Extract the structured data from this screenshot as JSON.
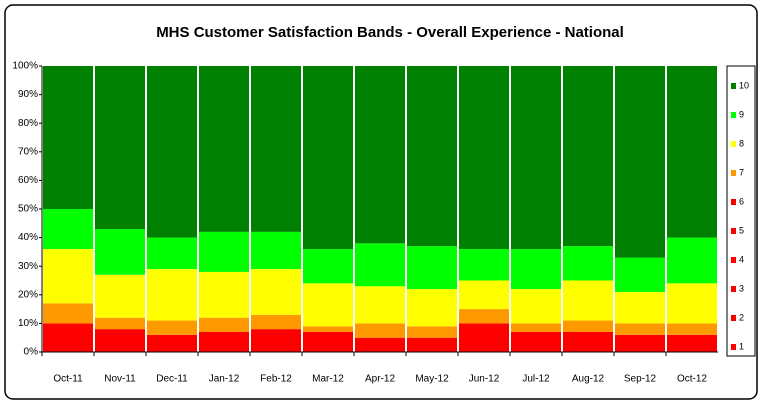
{
  "chart_data": {
    "type": "stacked_bar_100",
    "title": "MHS Customer Satisfaction Bands - Overall Experience - National",
    "categories": [
      "Oct-11",
      "Nov-11",
      "Dec-11",
      "Jan-12",
      "Feb-12",
      "Mar-12",
      "Apr-12",
      "May-12",
      "Jun-12",
      "Jul-12",
      "Aug-12",
      "Sep-12",
      "Oct-12"
    ],
    "series": [
      {
        "name": "10",
        "color": "#008000",
        "values": [
          50,
          57,
          60,
          58,
          58,
          64,
          62,
          63,
          64,
          64,
          63,
          67,
          60
        ]
      },
      {
        "name": "9",
        "color": "#00ff00",
        "values": [
          14,
          16,
          11,
          14,
          13,
          12,
          15,
          15,
          11,
          14,
          12,
          12,
          16
        ]
      },
      {
        "name": "8",
        "color": "#ffff00",
        "values": [
          19,
          15,
          18,
          16,
          16,
          15,
          13,
          13,
          10,
          12,
          14,
          11,
          14
        ]
      },
      {
        "name": "7",
        "color": "#ff9900",
        "values": [
          7,
          4,
          5,
          5,
          5,
          2,
          5,
          4,
          5,
          3,
          4,
          4,
          4
        ]
      },
      {
        "name": "6",
        "color": "#ff0000",
        "values": [
          10,
          8,
          6,
          7,
          8,
          7,
          5,
          5,
          10,
          7,
          7,
          6,
          6
        ]
      },
      {
        "name": "5",
        "color": "#ff0000",
        "values": [
          0,
          0,
          0,
          0,
          0,
          0,
          0,
          0,
          0,
          0,
          0,
          0,
          0
        ]
      },
      {
        "name": "4",
        "color": "#ff0000",
        "values": [
          0,
          0,
          0,
          0,
          0,
          0,
          0,
          0,
          0,
          0,
          0,
          0,
          0
        ]
      },
      {
        "name": "3",
        "color": "#ff0000",
        "values": [
          0,
          0,
          0,
          0,
          0,
          0,
          0,
          0,
          0,
          0,
          0,
          0,
          0
        ]
      },
      {
        "name": "2",
        "color": "#ff0000",
        "values": [
          0,
          0,
          0,
          0,
          0,
          0,
          0,
          0,
          0,
          0,
          0,
          0,
          0
        ]
      },
      {
        "name": "1",
        "color": "#ff0000",
        "values": [
          0,
          0,
          0,
          0,
          0,
          0,
          0,
          0,
          0,
          0,
          0,
          0,
          0
        ]
      }
    ],
    "ylim": [
      0,
      100
    ],
    "yticks": [
      {
        "value": 0,
        "label": "0%"
      },
      {
        "value": 10,
        "label": "10%"
      },
      {
        "value": 20,
        "label": "20%"
      },
      {
        "value": 30,
        "label": "30%"
      },
      {
        "value": 40,
        "label": "40%"
      },
      {
        "value": 50,
        "label": "50%"
      },
      {
        "value": 60,
        "label": "60%"
      },
      {
        "value": 70,
        "label": "70%"
      },
      {
        "value": 80,
        "label": "80%"
      },
      {
        "value": 90,
        "label": "90%"
      },
      {
        "value": 100,
        "label": "100%"
      }
    ],
    "legend": "right"
  }
}
